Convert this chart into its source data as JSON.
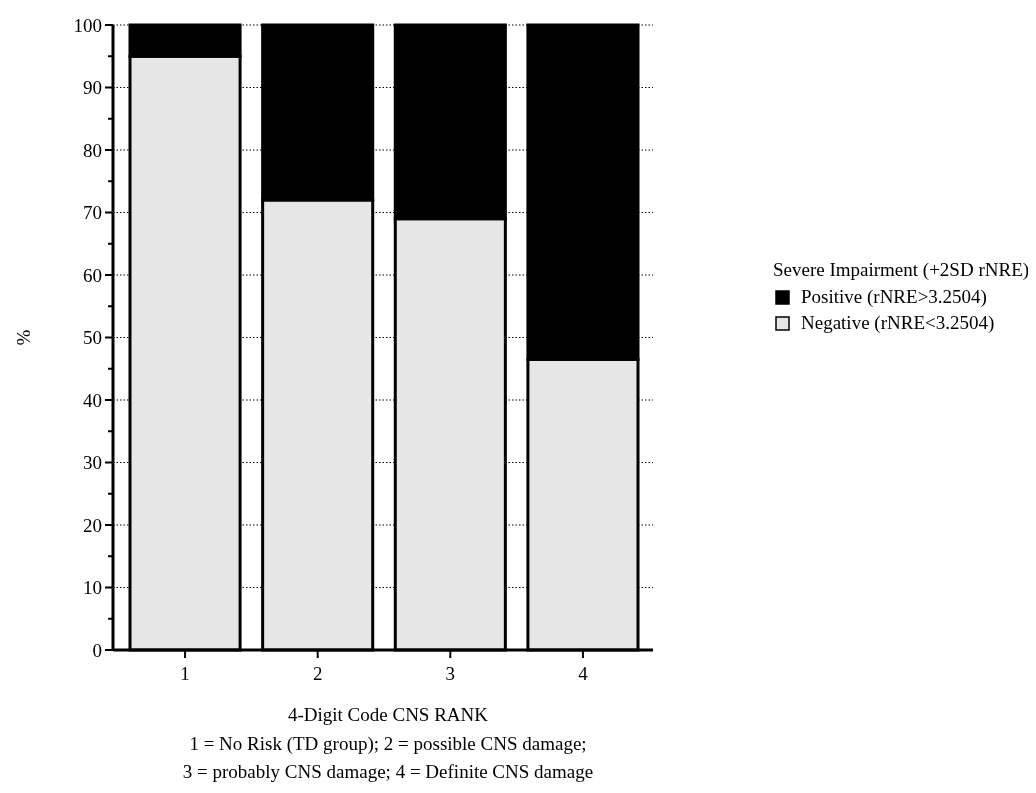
{
  "chart_data": {
    "type": "bar",
    "stacked": true,
    "xlabel": "4-Digit Code CNS RANK",
    "ylabel": "%",
    "legend_title": "Severe Impairment (+2SD rNRE)",
    "annotations": [
      "1 = No Risk (TD group); 2 = possible CNS damage;",
      "3 = probably CNS damage; 4 = Definite CNS damage"
    ],
    "categories": [
      "1",
      "2",
      "3",
      "4"
    ],
    "series": [
      {
        "name": "Negative (rNRE<3.2504)",
        "color": "#e6e6e6",
        "values": [
          95,
          72,
          69,
          46.5
        ]
      },
      {
        "name": "Positive (rNRE>3.2504)",
        "color": "#000000",
        "values": [
          5,
          28,
          31,
          53.5
        ]
      }
    ],
    "ylim": [
      0,
      100
    ],
    "yticks": [
      0,
      {
        "value": 5,
        "label": null
      },
      10,
      {
        "value": 15,
        "label": null
      },
      20,
      {
        "value": 25,
        "label": null
      },
      30,
      {
        "value": 35,
        "label": null
      },
      40,
      {
        "value": 45,
        "label": null
      },
      50,
      {
        "value": 55,
        "label": null
      },
      60,
      {
        "value": 65,
        "label": null
      },
      70,
      {
        "value": 75,
        "label": null
      },
      80,
      {
        "value": 85,
        "label": null
      },
      90,
      {
        "value": 95,
        "label": null
      },
      100
    ],
    "grid": "y",
    "legend": "right"
  }
}
